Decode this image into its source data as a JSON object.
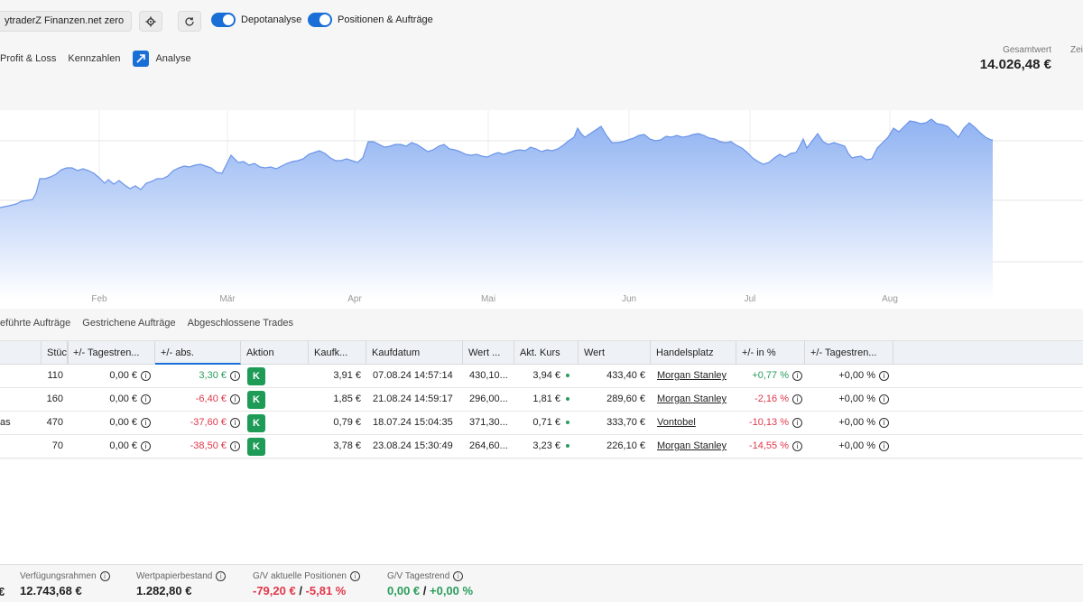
{
  "toolbar": {
    "depot_label": "ytraderZ Finanzen.net zero",
    "toggle_depotanalyse": "Depotanalyse",
    "toggle_positionen": "Positionen & Aufträge"
  },
  "subnav": {
    "profit_loss": "Profit & Loss",
    "kennzahlen": "Kennzahlen",
    "analyse": "Analyse"
  },
  "summary": {
    "total_label": "Gesamtwert",
    "total_value": "14.026,48 €",
    "zei_label": "Zei"
  },
  "chart_data": {
    "type": "area",
    "x_ticks": [
      "Feb",
      "Mär",
      "Apr",
      "Mai",
      "Jun",
      "Jul",
      "Aug"
    ],
    "title": "",
    "color": "#5b8ef0"
  },
  "tabs": [
    "eführte Aufträge",
    "Gestrichene Aufträge",
    "Abgeschlossene Trades"
  ],
  "table": {
    "headers": [
      "Stück...",
      "+/- Tagestren...",
      "+/- abs.",
      "Aktion",
      "Kaufk...",
      "Kaufdatum",
      "Wert ...",
      "Akt. Kurs",
      "Wert",
      "Handelsplatz",
      "+/- in %",
      "+/- Tagestren..."
    ],
    "rows": [
      {
        "name": "",
        "stueck": "110",
        "tagestrend": "0,00 €",
        "abs": "3,30 €",
        "abs_sign": "pos",
        "aktion": "K",
        "kaufkurs": "3,91 €",
        "kaufdatum": "07.08.24 14:57:14",
        "wert_kauf": "430,10...",
        "akt_kurs": "3,94 €",
        "wert": "433,40 €",
        "handelsplatz": "Morgan Stanley",
        "pct": "+0,77 %",
        "pct_sign": "pos",
        "tagestrend_pct": "+0,00 %"
      },
      {
        "name": "",
        "stueck": "160",
        "tagestrend": "0,00 €",
        "abs": "-6,40 €",
        "abs_sign": "neg",
        "aktion": "K",
        "kaufkurs": "1,85 €",
        "kaufdatum": "21.08.24 14:59:17",
        "wert_kauf": "296,00...",
        "akt_kurs": "1,81 €",
        "wert": "289,60 €",
        "handelsplatz": "Morgan Stanley",
        "pct": "-2,16 %",
        "pct_sign": "neg",
        "tagestrend_pct": "+0,00 %"
      },
      {
        "name": "as",
        "stueck": "470",
        "tagestrend": "0,00 €",
        "abs": "-37,60 €",
        "abs_sign": "neg",
        "aktion": "K",
        "kaufkurs": "0,79 €",
        "kaufdatum": "18.07.24 15:04:35",
        "wert_kauf": "371,30...",
        "akt_kurs": "0,71 €",
        "wert": "333,70 €",
        "handelsplatz": "Vontobel",
        "pct": "-10,13 %",
        "pct_sign": "neg",
        "tagestrend_pct": "+0,00 %"
      },
      {
        "name": "",
        "stueck": "70",
        "tagestrend": "0,00 €",
        "abs": "-38,50 €",
        "abs_sign": "neg",
        "aktion": "K",
        "kaufkurs": "3,78 €",
        "kaufdatum": "23.08.24 15:30:49",
        "wert_kauf": "264,60...",
        "akt_kurs": "3,23 €",
        "wert": "226,10 €",
        "handelsplatz": "Morgan Stanley",
        "pct": "-14,55 %",
        "pct_sign": "neg",
        "tagestrend_pct": "+0,00 %"
      }
    ]
  },
  "footer": {
    "first_glyph": "€",
    "verfuegungsrahmen_label": "Verfügungsrahmen",
    "verfuegungsrahmen_value": "12.743,68 €",
    "wertpapierbestand_label": "Wertpapierbestand",
    "wertpapierbestand_value": "1.282,80 €",
    "gv_positionen_label": "G/V aktuelle Positionen",
    "gv_positionen_abs": "-79,20 €",
    "gv_positionen_sep": " / ",
    "gv_positionen_pct": "-5,81 %",
    "gv_tagestrend_label": "G/V Tagestrend",
    "gv_tagestrend_abs": "0,00 €",
    "gv_tagestrend_sep": " / ",
    "gv_tagestrend_pct": "+0,00 %"
  },
  "icons": {
    "settings": "gear-icon",
    "refresh": "refresh-icon",
    "analyse": "analyse-icon",
    "info": "info-icon"
  }
}
